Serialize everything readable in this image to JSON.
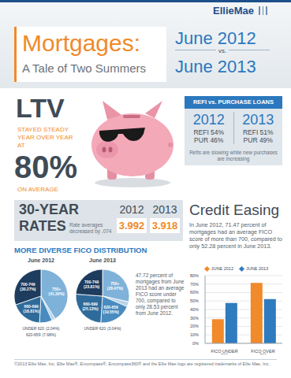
{
  "header": {
    "logo": "EllieMae",
    "title": "Mortgages:",
    "subtitle": "A Tale of Two Summers",
    "period_start": "June 2012",
    "vs": "vs.",
    "period_end": "June 2013"
  },
  "ltv": {
    "title": "LTV",
    "lead": "STAYED STEADY YEAR OVER YEAR AT",
    "value": "80%",
    "tail": "ON AVERAGE"
  },
  "refi_vs_purchase": {
    "title": "REFI vs. PURCHASE LOANS",
    "columns": [
      {
        "year": "2012",
        "lines": [
          "REFI 54%",
          "PUR 46%"
        ]
      },
      {
        "year": "2013",
        "lines": [
          "REFI 51%",
          "PUR 49%"
        ]
      }
    ],
    "note": "Refis are slowing while new purchases are increasing"
  },
  "rates": {
    "title_lines": [
      "30-YEAR",
      "RATES"
    ],
    "note": "Rate averages decreased by .074",
    "columns": [
      {
        "year": "2012",
        "rate": "3.992"
      },
      {
        "year": "2013",
        "rate": "3.918"
      }
    ]
  },
  "credit_easing": {
    "title": "Credit Easing",
    "text": "In June 2012, 71.47 percent of mortgages had an average FICO score of more than 700, compared to only 52.28 percent in June 2013."
  },
  "fico_distribution": {
    "title": "MORE DIVERSE FICO DISTRIBUTION",
    "note": "47.72 percent of mortgages from June 2013 had an average FICO score under 700, compared to only 28.53 percent from June 2012."
  },
  "chart_data": [
    {
      "type": "pie",
      "title": "June 2012",
      "categories": [
        "750+",
        "UNDER 620",
        "620-659",
        "660-699",
        "700-749"
      ],
      "values": [
        41.2,
        2.04,
        7.68,
        18.81,
        30.27
      ],
      "value_labels": [
        "(41.20%)",
        "(2.04%)",
        "(7.68%)",
        "(18.81%)",
        "(30.27%)"
      ],
      "colors": [
        "#7fb2d9",
        "#b9d3e8",
        "#4a8bbf",
        "#2f6b9a",
        "#1d3c5e"
      ],
      "data_labels": true
    },
    {
      "type": "pie",
      "title": "June 2013",
      "categories": [
        "750+",
        "UNDER 620",
        "620-659",
        "660-699",
        "700-749"
      ],
      "values": [
        28.47,
        3.04,
        19.55,
        25.13,
        23.81
      ],
      "value_labels": [
        "(28.47%)",
        "(3.04%)",
        "(19.55%)",
        "(25.13%)",
        "(23.81%)"
      ],
      "colors": [
        "#7fb2d9",
        "#b9d3e8",
        "#4a8bbf",
        "#2f6b9a",
        "#1d3c5e"
      ],
      "data_labels": true
    },
    {
      "type": "bar",
      "categories": [
        "FICO UNDER 700",
        "FICO OVER 700"
      ],
      "series": [
        {
          "name": "JUNE 2012",
          "color": "#f08a2a",
          "values": [
            28.53,
            71.47
          ]
        },
        {
          "name": "JUNE 2013",
          "color": "#2f7bbf",
          "values": [
            47.72,
            52.28
          ]
        }
      ],
      "ylim": [
        0,
        80
      ],
      "yticks": [
        {
          "value": 0,
          "label": "0%"
        },
        {
          "value": 10,
          "label": "10%"
        },
        {
          "value": 20,
          "label": "20%"
        },
        {
          "value": 30,
          "label": "30%"
        },
        {
          "value": 40,
          "label": "40%"
        },
        {
          "value": 50,
          "label": "50%"
        },
        {
          "value": 60,
          "label": "60%"
        },
        {
          "value": 70,
          "label": "70%"
        },
        {
          "value": 80,
          "label": "80%"
        }
      ],
      "grid": true,
      "legend": "top"
    }
  ],
  "footer": "©2013 Ellie Mae, Inc. Ellie Mae®, Encompass®, Encompass360® and the Ellie Mae logo are registered trademarks of Ellie Mae, Inc."
}
